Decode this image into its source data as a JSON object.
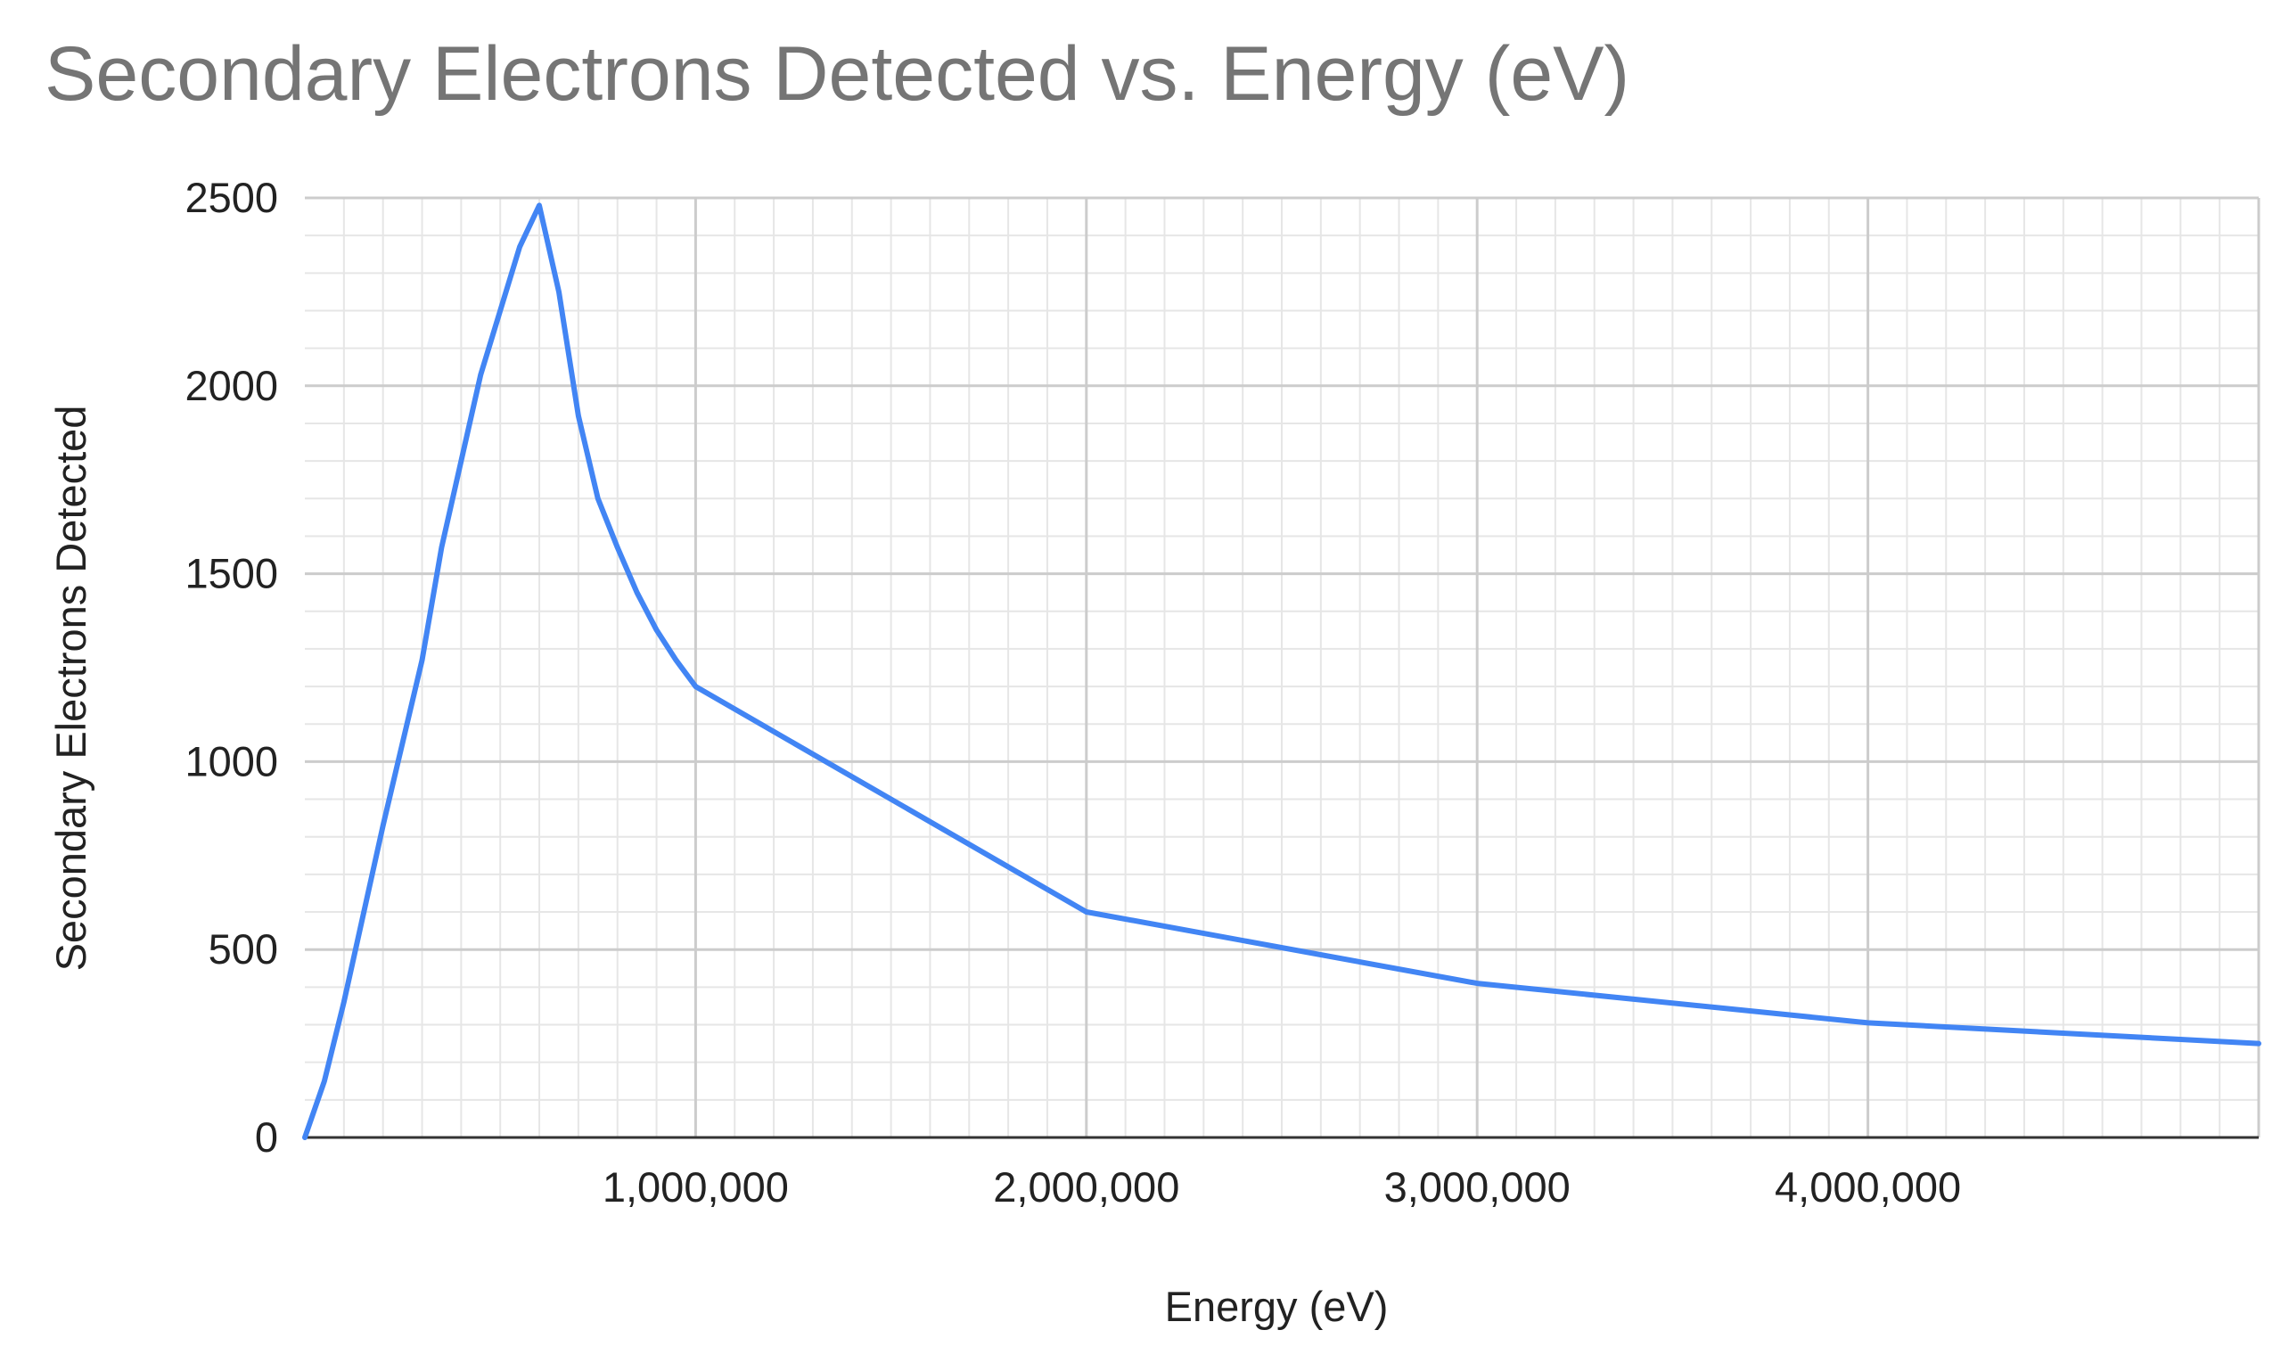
{
  "chart_data": {
    "type": "line",
    "title": "Secondary Electrons Detected vs. Energy (eV)",
    "xlabel": "Energy (eV)",
    "ylabel": "Secondary Electrons Detected",
    "xlim": [
      0,
      5000000
    ],
    "ylim": [
      0,
      2500
    ],
    "x_ticks": [
      1000000,
      2000000,
      3000000,
      4000000
    ],
    "x_tick_labels": [
      "1,000,000",
      "2,000,000",
      "3,000,000",
      "4,000,000"
    ],
    "y_ticks": [
      0,
      500,
      1000,
      1500,
      2000,
      2500
    ],
    "y_tick_labels": [
      "0",
      "500",
      "1000",
      "1500",
      "2000",
      "2500"
    ],
    "grid": true,
    "legend": "none",
    "series": [
      {
        "name": "Secondary Electrons Detected",
        "color": "#4285f4",
        "x": [
          0,
          50000,
          100000,
          200000,
          300000,
          350000,
          450000,
          550000,
          600000,
          650000,
          700000,
          750000,
          800000,
          850000,
          900000,
          950000,
          1000000,
          2000000,
          3000000,
          4000000,
          5000000
        ],
        "y": [
          0,
          150,
          360,
          830,
          1270,
          1570,
          2030,
          2370,
          2480,
          2250,
          1920,
          1700,
          1570,
          1450,
          1350,
          1270,
          1200,
          600,
          410,
          305,
          250
        ]
      }
    ]
  }
}
